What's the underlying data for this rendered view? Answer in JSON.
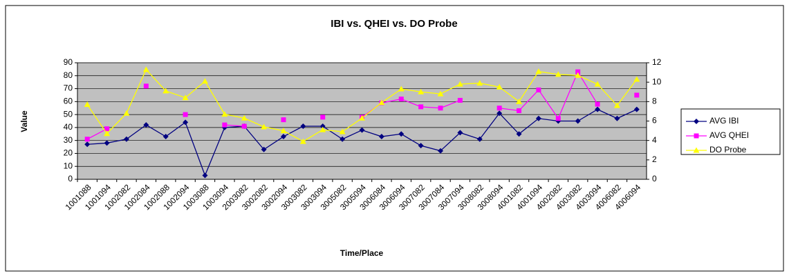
{
  "chart_data": {
    "type": "line",
    "title": "IBI vs. QHEI vs. DO Probe",
    "x_label": "Time/Place",
    "y_label": "Value",
    "categories": [
      "1001088",
      "1001094",
      "1002082",
      "1002084",
      "1002088",
      "1002094",
      "1003088",
      "1003094",
      "2003082",
      "3002082",
      "3002094",
      "3003082",
      "3003094",
      "3005082",
      "3005094",
      "3006084",
      "3006094",
      "3007082",
      "3007084",
      "3007094",
      "3008082",
      "3008094",
      "4001082",
      "4001094",
      "4002082",
      "4003082",
      "4003094",
      "4006082",
      "4006094"
    ],
    "series": [
      {
        "name": "AVG IBI",
        "color": "#000080",
        "marker": "diamond",
        "values": [
          27,
          28,
          31,
          42,
          33,
          44,
          3,
          40,
          41,
          23,
          33,
          41,
          41,
          31,
          38,
          33,
          35,
          26,
          22,
          36,
          31,
          51,
          35,
          47,
          45,
          45,
          54,
          47,
          54
        ]
      },
      {
        "name": "AVG QHEI",
        "color": "#ff00ff",
        "marker": "square",
        "values": [
          31,
          39,
          null,
          72,
          null,
          50,
          null,
          42,
          41,
          null,
          46,
          null,
          48,
          null,
          48,
          59,
          62,
          56,
          55,
          61,
          null,
          55,
          53,
          69,
          47,
          83,
          58,
          null,
          65
        ]
      },
      {
        "name": "DO Probe",
        "color": "#ffff00",
        "marker": "triangle",
        "axis": "y2",
        "values": [
          7.7,
          4.7,
          6.8,
          11.3,
          9.1,
          8.4,
          10.1,
          6.7,
          6.3,
          5.4,
          5.0,
          3.9,
          5.1,
          4.9,
          6.3,
          7.9,
          9.3,
          9.0,
          8.8,
          9.8,
          9.9,
          9.5,
          8.0,
          11.1,
          10.8,
          10.7,
          9.8,
          7.6,
          10.3
        ]
      }
    ],
    "ylim": [
      0,
      90
    ],
    "yticks": [
      0,
      10,
      20,
      30,
      40,
      50,
      60,
      70,
      80,
      90
    ],
    "y2lim": [
      0,
      12
    ],
    "y2ticks": [
      0,
      2,
      4,
      6,
      8,
      10,
      12
    ],
    "grid": true,
    "legend": "right"
  }
}
